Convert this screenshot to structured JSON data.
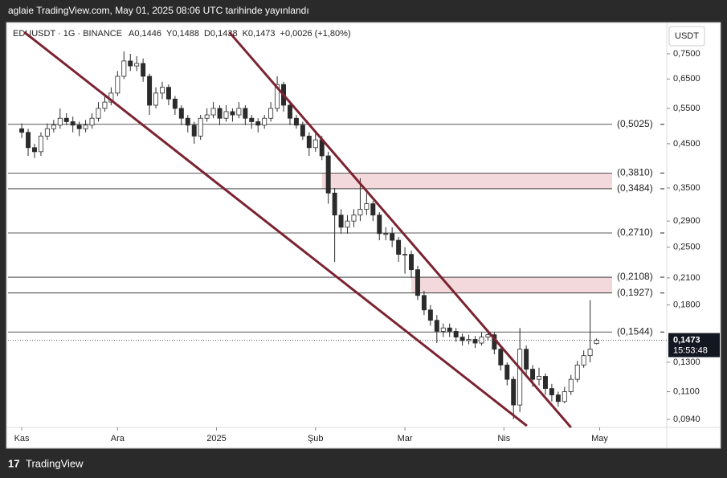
{
  "top_bar": "aglaie TradingView.com, May 01, 2025 08:06 UTC tarihinde yayınlandı",
  "footer": "TradingView",
  "chart_data": {
    "type": "candlestick",
    "symbol": "EDUUSDT · 1G · BINANCE",
    "header_items": [
      "A0,1446",
      "Y0,1488",
      "D0,1438",
      "K0,1473",
      "+0,0026 (+1,80%)"
    ],
    "currency": "USDT",
    "log_scale": true,
    "up_color": "#ffffff",
    "down_color": "#2b2b2b",
    "x": [
      0,
      2,
      4,
      6,
      8,
      10,
      12,
      14,
      16,
      18,
      20,
      22,
      24,
      26,
      28,
      30,
      32,
      34,
      36,
      38,
      40,
      42,
      44,
      46,
      48,
      50,
      52,
      54,
      56,
      58,
      60,
      62,
      64,
      66,
      68,
      70,
      72,
      74,
      76,
      78,
      80,
      82,
      84,
      86,
      88,
      90,
      92,
      94,
      96,
      98,
      100,
      102,
      104,
      106,
      108,
      110,
      112,
      114,
      116,
      118,
      120,
      122,
      124,
      126,
      128,
      130,
      132,
      134,
      136,
      138,
      140,
      142,
      144,
      146,
      148,
      150,
      152,
      154,
      156,
      158,
      160,
      162,
      164,
      166,
      168,
      170,
      172,
      174,
      176,
      178,
      180
    ],
    "open": [
      0.49,
      0.48,
      0.44,
      0.43,
      0.47,
      0.49,
      0.5,
      0.52,
      0.51,
      0.5,
      0.49,
      0.5,
      0.52,
      0.55,
      0.57,
      0.6,
      0.66,
      0.72,
      0.7,
      0.71,
      0.66,
      0.56,
      0.6,
      0.62,
      0.58,
      0.55,
      0.52,
      0.5,
      0.47,
      0.52,
      0.53,
      0.55,
      0.52,
      0.54,
      0.53,
      0.55,
      0.52,
      0.51,
      0.5,
      0.52,
      0.55,
      0.63,
      0.56,
      0.52,
      0.5,
      0.47,
      0.44,
      0.46,
      0.42,
      0.34,
      0.3,
      0.28,
      0.29,
      0.3,
      0.31,
      0.32,
      0.3,
      0.27,
      0.27,
      0.26,
      0.24,
      0.24,
      0.22,
      0.19,
      0.175,
      0.165,
      0.155,
      0.158,
      0.155,
      0.15,
      0.147,
      0.148,
      0.145,
      0.15,
      0.152,
      0.14,
      0.128,
      0.118,
      0.102,
      0.14,
      0.125,
      0.118,
      0.12,
      0.112,
      0.108,
      0.104,
      0.11,
      0.118,
      0.128,
      0.135,
      0.1446
    ],
    "high": [
      0.505,
      0.49,
      0.45,
      0.48,
      0.505,
      0.515,
      0.55,
      0.535,
      0.525,
      0.51,
      0.515,
      0.535,
      0.57,
      0.59,
      0.62,
      0.68,
      0.76,
      0.75,
      0.74,
      0.73,
      0.67,
      0.62,
      0.64,
      0.63,
      0.59,
      0.56,
      0.53,
      0.51,
      0.53,
      0.55,
      0.57,
      0.56,
      0.56,
      0.55,
      0.57,
      0.56,
      0.53,
      0.52,
      0.53,
      0.57,
      0.66,
      0.64,
      0.57,
      0.53,
      0.51,
      0.48,
      0.48,
      0.47,
      0.43,
      0.35,
      0.31,
      0.3,
      0.31,
      0.37,
      0.34,
      0.325,
      0.305,
      0.28,
      0.28,
      0.265,
      0.25,
      0.245,
      0.225,
      0.195,
      0.18,
      0.17,
      0.162,
      0.162,
      0.158,
      0.153,
      0.152,
      0.151,
      0.154,
      0.156,
      0.154,
      0.142,
      0.13,
      0.12,
      0.158,
      0.143,
      0.128,
      0.126,
      0.122,
      0.115,
      0.11,
      0.113,
      0.121,
      0.131,
      0.139,
      0.185,
      0.1488
    ],
    "low": [
      0.465,
      0.42,
      0.415,
      0.42,
      0.46,
      0.48,
      0.49,
      0.5,
      0.48,
      0.47,
      0.48,
      0.49,
      0.51,
      0.54,
      0.56,
      0.59,
      0.65,
      0.68,
      0.68,
      0.64,
      0.53,
      0.55,
      0.58,
      0.56,
      0.53,
      0.5,
      0.48,
      0.45,
      0.46,
      0.51,
      0.52,
      0.5,
      0.51,
      0.51,
      0.52,
      0.5,
      0.49,
      0.48,
      0.49,
      0.51,
      0.54,
      0.54,
      0.5,
      0.49,
      0.46,
      0.42,
      0.43,
      0.41,
      0.32,
      0.23,
      0.27,
      0.27,
      0.28,
      0.29,
      0.3,
      0.29,
      0.26,
      0.26,
      0.25,
      0.23,
      0.215,
      0.21,
      0.185,
      0.17,
      0.16,
      0.145,
      0.15,
      0.15,
      0.146,
      0.143,
      0.144,
      0.141,
      0.143,
      0.147,
      0.136,
      0.124,
      0.114,
      0.094,
      0.098,
      0.12,
      0.113,
      0.114,
      0.108,
      0.104,
      0.101,
      0.103,
      0.108,
      0.116,
      0.126,
      0.13,
      0.1438
    ],
    "close": [
      0.48,
      0.44,
      0.43,
      0.47,
      0.49,
      0.5,
      0.52,
      0.51,
      0.5,
      0.49,
      0.5,
      0.52,
      0.55,
      0.57,
      0.6,
      0.66,
      0.72,
      0.7,
      0.71,
      0.66,
      0.56,
      0.6,
      0.62,
      0.58,
      0.55,
      0.52,
      0.5,
      0.47,
      0.52,
      0.53,
      0.55,
      0.52,
      0.54,
      0.53,
      0.55,
      0.52,
      0.51,
      0.5,
      0.52,
      0.55,
      0.63,
      0.56,
      0.52,
      0.5,
      0.47,
      0.44,
      0.46,
      0.42,
      0.34,
      0.3,
      0.28,
      0.29,
      0.3,
      0.31,
      0.32,
      0.3,
      0.27,
      0.27,
      0.26,
      0.24,
      0.24,
      0.22,
      0.19,
      0.175,
      0.165,
      0.155,
      0.158,
      0.155,
      0.15,
      0.147,
      0.148,
      0.145,
      0.15,
      0.152,
      0.14,
      0.128,
      0.118,
      0.102,
      0.14,
      0.125,
      0.118,
      0.12,
      0.112,
      0.108,
      0.104,
      0.11,
      0.118,
      0.128,
      0.135,
      0.14,
      0.1473
    ],
    "xlim": [
      -4.3,
      202
    ],
    "xticks": [
      {
        "value": 0,
        "label": "Kas"
      },
      {
        "value": 30,
        "label": "Ara"
      },
      {
        "value": 61,
        "label": "2025"
      },
      {
        "value": 92,
        "label": "Şub"
      },
      {
        "value": 120,
        "label": "Mar"
      },
      {
        "value": 151,
        "label": "Nis"
      },
      {
        "value": 181,
        "label": "May"
      }
    ],
    "ylim": [
      0.0898,
      0.896
    ],
    "yticks": [
      {
        "value": 0.75,
        "label": "0,7500"
      },
      {
        "value": 0.65,
        "label": "0,6500"
      },
      {
        "value": 0.55,
        "label": "0,5500"
      },
      {
        "value": 0.45,
        "label": "0,4500"
      },
      {
        "value": 0.35,
        "label": "0,3500"
      },
      {
        "value": 0.29,
        "label": "0,2900"
      },
      {
        "value": 0.25,
        "label": "0,2500"
      },
      {
        "value": 0.21,
        "label": "0,2100"
      },
      {
        "value": 0.18,
        "label": "0,1800"
      },
      {
        "value": 0.13,
        "label": "0,1300"
      },
      {
        "value": 0.11,
        "label": "0,1100"
      },
      {
        "value": 0.094,
        "label": "0,0940"
      }
    ],
    "levels": [
      {
        "value": 0.5025,
        "label": "(0,5025)"
      },
      {
        "value": 0.381,
        "label": "(0,3810)"
      },
      {
        "value": 0.3484,
        "label": "(0,3484)"
      },
      {
        "value": 0.271,
        "label": "(0,2710)"
      },
      {
        "value": 0.2108,
        "label": "(0,2108)"
      },
      {
        "value": 0.1927,
        "label": "(0,1927)"
      },
      {
        "value": 0.1544,
        "label": "(0,1544)"
      }
    ],
    "zones": [
      {
        "low": 0.3484,
        "high": 0.381,
        "x_start": 94
      },
      {
        "low": 0.1927,
        "high": 0.2108,
        "x_start": 122
      }
    ],
    "zone_color": "#f3d9db",
    "trendlines": [
      {
        "x": [
          0.8,
          158.2
        ],
        "y": [
          0.848,
          0.0906
        ]
      },
      {
        "x": [
          65,
          172
        ],
        "y": [
          0.848,
          0.0898
        ]
      }
    ],
    "trendline_color": "#7b2331",
    "last_price": {
      "value": 0.1473,
      "label": "0,1473",
      "countdown": "15:53:48"
    }
  }
}
